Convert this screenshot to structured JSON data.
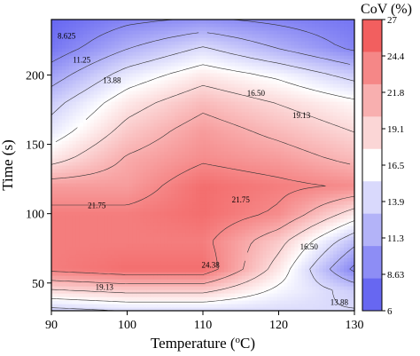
{
  "chart_data": {
    "type": "heatmap",
    "subtype": "contour",
    "xlabel": "Temperature (",
    "xlabel_unit_sup": "o",
    "xlabel_tail": "C)",
    "ylabel": "Time (s)",
    "x_ticks": [
      90,
      100,
      110,
      120,
      130
    ],
    "y_ticks": [
      50,
      100,
      150,
      200
    ],
    "xlim": [
      90,
      130
    ],
    "ylim": [
      30,
      240
    ],
    "colorbar": {
      "title": "CoV (%)",
      "ticks": [
        "27",
        "24.4",
        "21.8",
        "19.1",
        "16.5",
        "13.9",
        "11.3",
        "8.63",
        "6"
      ],
      "min": 6,
      "max": 27,
      "colors": [
        "#f25f5f",
        "#f58787",
        "#f8afaf",
        "#fbd6d6",
        "#ffffff",
        "#d9d9fc",
        "#b3b3f8",
        "#8d8df5",
        "#6767f1"
      ]
    },
    "colormap": {
      "low": "#6767f1",
      "mid": "#ffffff",
      "high": "#f25f5f",
      "mid_value": 16.5
    },
    "contour_labels": [
      "8.625",
      "11.25",
      "13.88",
      "16.50",
      "19.13",
      "21.75",
      "21.75",
      "24.38",
      "16.50",
      "19.13",
      "13.88"
    ],
    "grid": [
      {
        "time": 240,
        "values": [
          6,
          8,
          9,
          8,
          7
        ]
      },
      {
        "time": 220,
        "values": [
          7,
          11,
          14,
          11,
          8
        ]
      },
      {
        "time": 200,
        "values": [
          10,
          15,
          18,
          16,
          13
        ]
      },
      {
        "time": 180,
        "values": [
          13,
          18,
          21,
          19,
          17
        ]
      },
      {
        "time": 160,
        "values": [
          15,
          20,
          23,
          21,
          19
        ]
      },
      {
        "time": 140,
        "values": [
          18,
          22,
          24,
          23,
          21
        ]
      },
      {
        "time": 120,
        "values": [
          23,
          23,
          26,
          25,
          24
        ]
      },
      {
        "time": 100,
        "values": [
          25,
          25,
          26,
          24,
          18
        ]
      },
      {
        "time": 80,
        "values": [
          25,
          25,
          25,
          20,
          12
        ]
      },
      {
        "time": 60,
        "values": [
          25,
          26,
          26,
          18,
          8
        ]
      },
      {
        "time": 45,
        "values": [
          19,
          20,
          20,
          16,
          13
        ]
      },
      {
        "time": 30,
        "values": [
          13,
          14,
          14,
          14,
          14
        ]
      }
    ]
  }
}
